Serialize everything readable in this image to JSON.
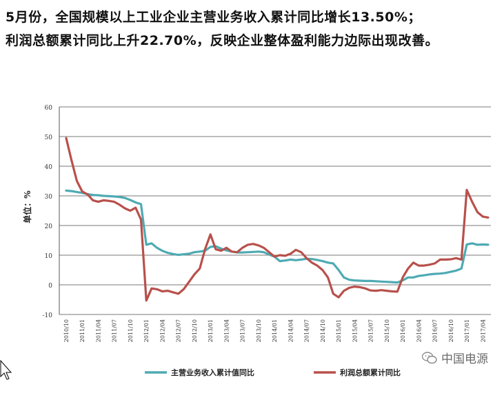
{
  "headline": {
    "line1": "5月份，全国规模以上工业企业主营业务收入累计同比增长13.50%；",
    "line2": "利润总额累计同比上升22.70%，反映企业整体盈利能力边际出现改善。"
  },
  "watermark": "中国电源",
  "colors": {
    "series1": "#4eaab3",
    "series2": "#b8504b",
    "grid": "#7a7a7a",
    "axis": "#555555"
  },
  "chart_data": {
    "type": "line",
    "ylabel": "单位：%",
    "ylim": [
      -10,
      60
    ],
    "yticks": [
      -10,
      0,
      10,
      20,
      30,
      40,
      50,
      60
    ],
    "grid": true,
    "legend_position": "bottom",
    "x_tick_labels": [
      "2010/10",
      "2011/01",
      "2011/04",
      "2011/07",
      "2011/10",
      "2012/01",
      "2012/04",
      "2012/07",
      "2012/10",
      "2013/01",
      "2013/04",
      "2013/07",
      "2013/10",
      "2014/01",
      "2014/04",
      "2014/07",
      "2014/10",
      "2015/01",
      "2015/04",
      "2015/07",
      "2015/10",
      "2016/01",
      "2016/04",
      "2016/07",
      "2016/10",
      "2017/01",
      "2017/04"
    ],
    "x": [
      "2010/10",
      "2010/11",
      "2010/12",
      "2011/01",
      "2011/02",
      "2011/03",
      "2011/04",
      "2011/05",
      "2011/06",
      "2011/07",
      "2011/08",
      "2011/09",
      "2011/10",
      "2011/11",
      "2011/12",
      "2012/01",
      "2012/02",
      "2012/03",
      "2012/04",
      "2012/05",
      "2012/06",
      "2012/07",
      "2012/08",
      "2012/09",
      "2012/10",
      "2012/11",
      "2012/12",
      "2013/01",
      "2013/02",
      "2013/03",
      "2013/04",
      "2013/05",
      "2013/06",
      "2013/07",
      "2013/08",
      "2013/09",
      "2013/10",
      "2013/11",
      "2013/12",
      "2014/01",
      "2014/02",
      "2014/03",
      "2014/04",
      "2014/05",
      "2014/06",
      "2014/07",
      "2014/08",
      "2014/09",
      "2014/10",
      "2014/11",
      "2014/12",
      "2015/01",
      "2015/02",
      "2015/03",
      "2015/04",
      "2015/05",
      "2015/06",
      "2015/07",
      "2015/08",
      "2015/09",
      "2015/10",
      "2015/11",
      "2015/12",
      "2016/01",
      "2016/02",
      "2016/03",
      "2016/04",
      "2016/05",
      "2016/06",
      "2016/07",
      "2016/08",
      "2016/09",
      "2016/10",
      "2016/11",
      "2016/12",
      "2017/01",
      "2017/02",
      "2017/03",
      "2017/04",
      "2017/05"
    ],
    "series": [
      {
        "name": "主营业务收入累计值同比",
        "values": [
          31.8,
          31.6,
          31.3,
          31.0,
          30.6,
          30.3,
          30.2,
          30.0,
          29.9,
          29.8,
          29.6,
          29.3,
          28.6,
          27.8,
          27.2,
          13.5,
          14.0,
          12.5,
          11.5,
          10.8,
          10.4,
          10.1,
          10.3,
          10.5,
          11.0,
          11.2,
          11.5,
          12.8,
          13.0,
          12.2,
          11.6,
          11.2,
          10.9,
          10.9,
          11.0,
          11.1,
          11.2,
          11.0,
          10.2,
          9.5,
          8.0,
          8.2,
          8.5,
          8.3,
          8.5,
          8.8,
          8.7,
          8.4,
          8.0,
          7.5,
          7.2,
          5.0,
          2.5,
          1.7,
          1.5,
          1.4,
          1.3,
          1.3,
          1.2,
          1.1,
          1.0,
          0.9,
          0.8,
          1.5,
          2.5,
          2.5,
          3.0,
          3.2,
          3.5,
          3.7,
          3.8,
          4.0,
          4.4,
          4.8,
          5.5,
          13.6,
          14.0,
          13.5,
          13.6,
          13.5
        ]
      },
      {
        "name": "利润总额累计同比",
        "values": [
          49.5,
          42.0,
          35.0,
          31.5,
          30.5,
          28.5,
          28.0,
          28.5,
          28.3,
          28.0,
          27.0,
          25.8,
          25.0,
          26.0,
          22.0,
          -5.3,
          -1.2,
          -1.5,
          -2.2,
          -2.0,
          -2.5,
          -3.0,
          -1.5,
          1.0,
          3.5,
          5.5,
          12.0,
          17.0,
          12.0,
          11.5,
          12.5,
          11.2,
          11.0,
          12.5,
          13.5,
          13.8,
          13.3,
          12.5,
          11.0,
          9.5,
          10.0,
          9.8,
          10.5,
          11.8,
          11.0,
          9.0,
          7.5,
          6.5,
          5.0,
          2.5,
          -3.0,
          -4.2,
          -2.0,
          -1.0,
          -0.6,
          -0.8,
          -1.2,
          -1.9,
          -2.0,
          -1.8,
          -2.0,
          -2.2,
          -2.3,
          2.5,
          5.5,
          7.5,
          6.5,
          6.5,
          6.8,
          7.2,
          8.5,
          8.5,
          8.6,
          9.0,
          8.5,
          32.0,
          28.0,
          24.5,
          23.0,
          22.7
        ]
      }
    ]
  }
}
